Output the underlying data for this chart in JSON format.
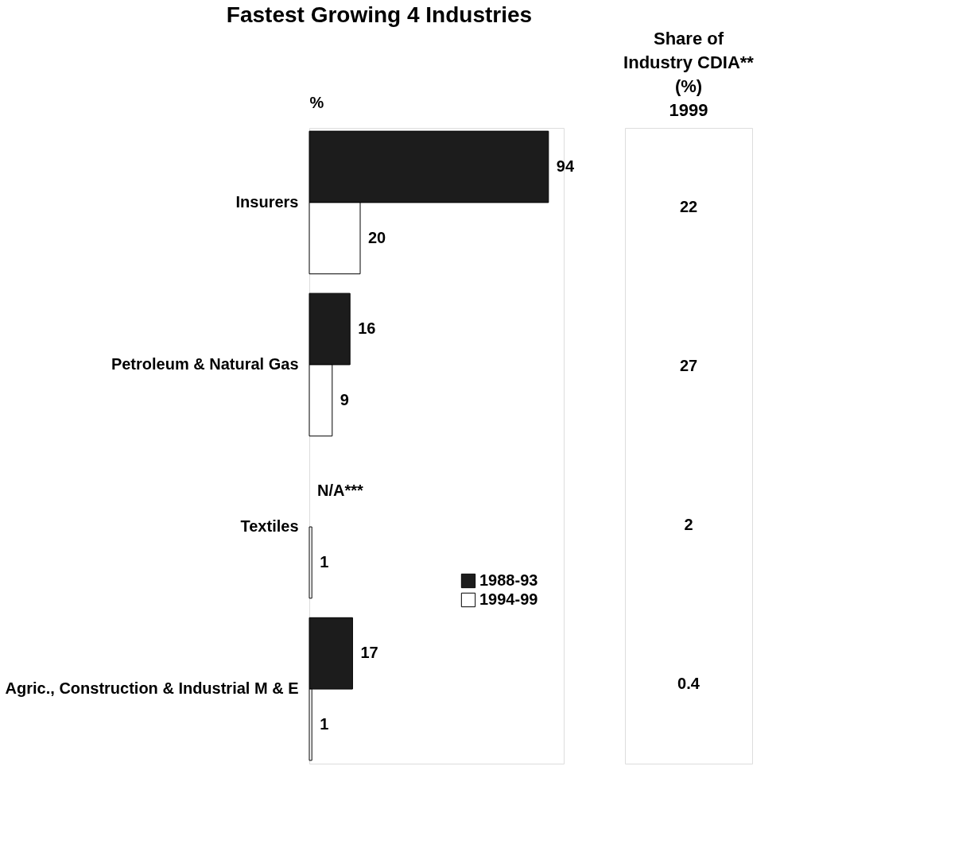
{
  "chart_data": {
    "type": "bar",
    "orientation": "horizontal",
    "title": "Fastest Growing 4 Industries",
    "xlabel": "%",
    "categories": [
      "Insurers",
      "Petroleum & Natural Gas",
      "Textiles",
      "Agric., Construction & Industrial M & E"
    ],
    "series": [
      {
        "name": "1988-93",
        "color": "#1c1c1c",
        "values": [
          94,
          16,
          null,
          17
        ],
        "value_labels": [
          "94",
          "16",
          "N/A***",
          "17"
        ]
      },
      {
        "name": "1994-99",
        "color": "#ffffff",
        "values": [
          20,
          9,
          1,
          1
        ],
        "value_labels": [
          "20",
          "9",
          "1",
          "1"
        ]
      }
    ],
    "xlim": [
      0,
      100
    ],
    "grid": false,
    "legend": "right",
    "annotations": [
      "Share of\nIndustry CDIA**\n(%)\n1999",
      "22",
      "27",
      "2",
      "0.4"
    ]
  }
}
